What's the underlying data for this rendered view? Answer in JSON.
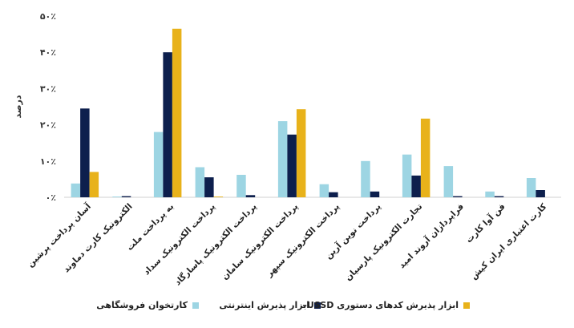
{
  "chart_data": {
    "type": "bar",
    "ylabel": "درصد",
    "ylim": [
      0,
      50
    ],
    "yticks": [
      "۰٪",
      "۱۰٪",
      "۲۰٪",
      "۳۰٪",
      "۴۰٪",
      "۵۰٪"
    ],
    "grid": false,
    "legend_position": "bottom",
    "categories": [
      "آسان پرداخت پرشین",
      "الکترونیک کارت دماوند",
      "به پرداخت ملت",
      "پرداخت الکترونیک سداد",
      "پرداخت الکترونیک پاسارگاد",
      "پرداخت الکترونیک سامان",
      "پرداخت الکترونیک سپهر",
      "پرداخت نوین آرین",
      "تجارت الکترونیک پارسیان",
      "فراپردازان آروند امید",
      "فن آوا کارت",
      "کارت اعتباری ایران کیش"
    ],
    "series": [
      {
        "name": "کارتخوان فروشگاهی",
        "color": "#9dd5e3",
        "values": [
          3.8,
          0.2,
          18,
          8.3,
          6.2,
          21,
          3.6,
          10,
          11.8,
          8.6,
          1.6,
          5.3
        ]
      },
      {
        "name": "ابزار پذیرش اینترنتی",
        "color": "#0d1f4d",
        "values": [
          24.5,
          0.3,
          40,
          5.5,
          0.6,
          17.3,
          1.4,
          1.6,
          6,
          0.3,
          0.3,
          2
        ]
      },
      {
        "name": "ابزار پذیرش کدهای دستوری USSD",
        "color": "#e8b21a",
        "values": [
          7,
          0,
          46.5,
          0.2,
          0,
          24.3,
          0,
          0,
          21.7,
          0,
          0,
          0
        ]
      }
    ]
  },
  "legend": {
    "item1": "کارتخوان فروشگاهی",
    "item2": "ابزار پذیرش اینترنتی",
    "item3": "ابزار پذیرش کدهای دستوری USSD–"
  }
}
